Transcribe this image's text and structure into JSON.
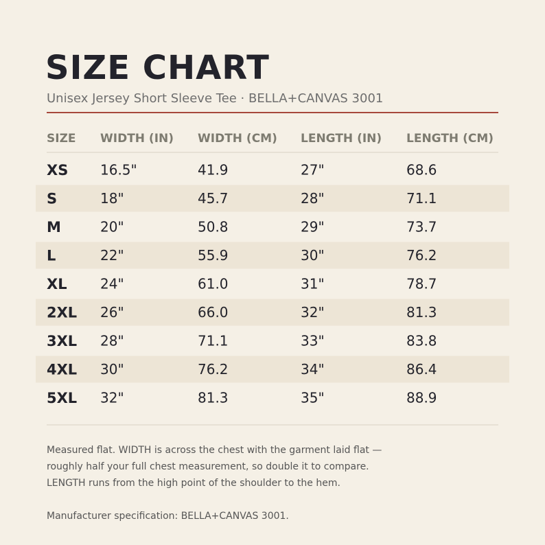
{
  "header": {
    "title": "SIZE CHART",
    "subtitle": "Unisex Jersey Short Sleeve Tee  ·  BELLA+CANVAS 3001"
  },
  "table": {
    "columns": [
      "SIZE",
      "WIDTH (IN)",
      "WIDTH (CM)",
      "LENGTH (IN)",
      "LENGTH (CM)"
    ],
    "rows": [
      [
        "XS",
        "16.5\"",
        "41.9",
        "27\"",
        "68.6"
      ],
      [
        "S",
        "18\"",
        "45.7",
        "28\"",
        "71.1"
      ],
      [
        "M",
        "20\"",
        "50.8",
        "29\"",
        "73.7"
      ],
      [
        "L",
        "22\"",
        "55.9",
        "30\"",
        "76.2"
      ],
      [
        "XL",
        "24\"",
        "61.0",
        "31\"",
        "78.7"
      ],
      [
        "2XL",
        "26\"",
        "66.0",
        "32\"",
        "81.3"
      ],
      [
        "3XL",
        "28\"",
        "71.1",
        "33\"",
        "83.8"
      ],
      [
        "4XL",
        "30\"",
        "76.2",
        "34\"",
        "86.4"
      ],
      [
        "5XL",
        "32\"",
        "81.3",
        "35\"",
        "88.9"
      ]
    ]
  },
  "notes": [
    "Measured flat. WIDTH is across the chest with the garment laid flat —",
    "roughly half your full chest measurement, so double it to compare.",
    "LENGTH runs from the high point of the shoulder to the hem."
  ],
  "footer": "Manufacturer specification: BELLA+CANVAS 3001."
}
